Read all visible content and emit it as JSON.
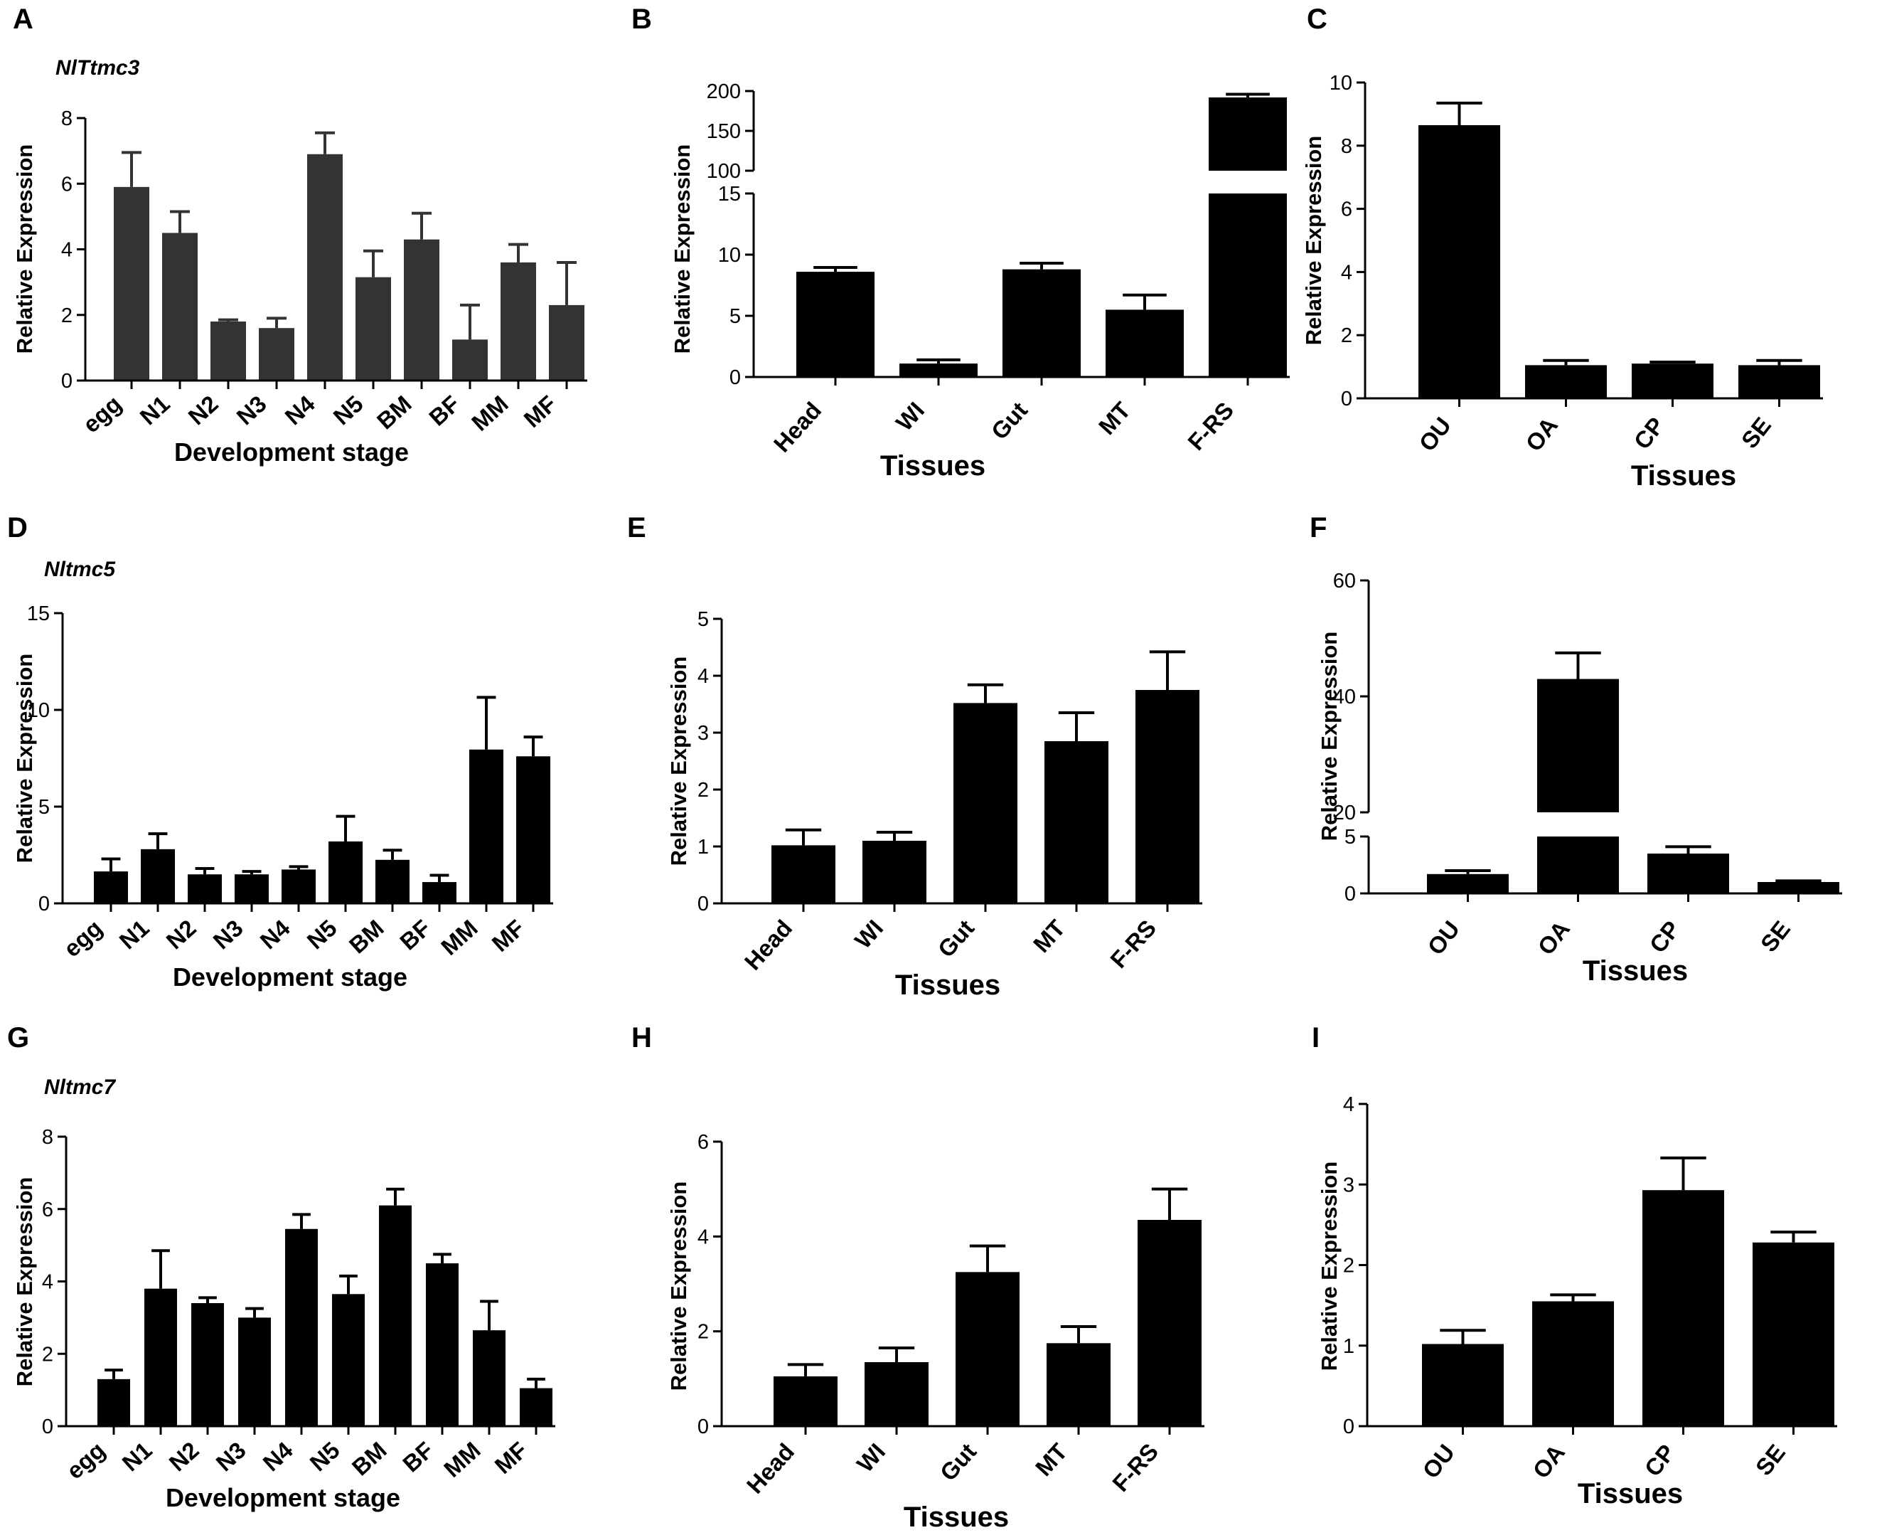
{
  "chart_data": [
    {
      "letter": "A",
      "type": "bar",
      "gene": "NlTtmc3",
      "categories": [
        "egg",
        "N1",
        "N2",
        "N3",
        "N4",
        "N5",
        "BM",
        "BF",
        "MM",
        "MF"
      ],
      "values": [
        5.9,
        4.5,
        1.8,
        1.6,
        6.9,
        3.15,
        4.3,
        1.25,
        3.6,
        2.3
      ],
      "errors": [
        1.05,
        0.65,
        0.05,
        0.3,
        0.65,
        0.8,
        0.8,
        1.05,
        0.55,
        1.3
      ],
      "yticks": [
        "0",
        "2",
        "4",
        "6",
        "8"
      ],
      "ylim": [
        0,
        8
      ],
      "ylabel": "Relative Expression",
      "xlabel": "Development stage",
      "color": "#333333"
    },
    {
      "letter": "B",
      "type": "bar",
      "gene": "",
      "categories": [
        "Head",
        "WI",
        "Gut",
        "MT",
        "F-RS"
      ],
      "values": [
        8.6,
        1.1,
        8.8,
        5.5,
        192
      ],
      "errors": [
        0.35,
        0.3,
        0.5,
        1.2,
        4
      ],
      "yticks_low": [
        "0",
        "5",
        "10",
        "15"
      ],
      "yticks_high": [
        "100",
        "150",
        "200"
      ],
      "ylim_low": [
        0,
        15
      ],
      "ylim_high": [
        100,
        200
      ],
      "broken_axis": true,
      "ylabel": "Relative Expression",
      "xlabel": "Tissues",
      "color": "#000000"
    },
    {
      "letter": "C",
      "type": "bar",
      "gene": "",
      "categories": [
        "OU",
        "OA",
        "CP",
        "SE"
      ],
      "values": [
        8.65,
        1.05,
        1.1,
        1.05
      ],
      "errors": [
        0.7,
        0.15,
        0.05,
        0.15
      ],
      "yticks": [
        "0",
        "2",
        "4",
        "6",
        "8",
        "10"
      ],
      "ylim": [
        0,
        10
      ],
      "ylabel": "Relative Expression",
      "xlabel": "Tissues",
      "color": "#000000"
    },
    {
      "letter": "D",
      "type": "bar",
      "gene": "Nltmc5",
      "categories": [
        "egg",
        "N1",
        "N2",
        "N3",
        "N4",
        "N5",
        "BM",
        "BF",
        "MM",
        "MF"
      ],
      "values": [
        1.65,
        2.8,
        1.5,
        1.5,
        1.75,
        3.2,
        2.25,
        1.1,
        7.95,
        7.6
      ],
      "errors": [
        0.65,
        0.8,
        0.3,
        0.15,
        0.15,
        1.3,
        0.5,
        0.35,
        2.7,
        1.0
      ],
      "yticks": [
        "0",
        "5",
        "10",
        "15"
      ],
      "ylim": [
        0,
        15
      ],
      "ylabel": "Relative Expression",
      "xlabel": "Development stage",
      "color": "#000000"
    },
    {
      "letter": "E",
      "type": "bar",
      "gene": "",
      "categories": [
        "Head",
        "WI",
        "Gut",
        "MT",
        "F-RS"
      ],
      "values": [
        1.02,
        1.1,
        3.52,
        2.85,
        3.75
      ],
      "errors": [
        0.27,
        0.15,
        0.32,
        0.5,
        0.67
      ],
      "yticks": [
        "0",
        "1",
        "2",
        "3",
        "4",
        "5"
      ],
      "ylim": [
        0,
        5
      ],
      "ylabel": "Relative Expression",
      "xlabel": "Tissues",
      "color": "#000000"
    },
    {
      "letter": "F",
      "type": "bar",
      "gene": "",
      "categories": [
        "OU",
        "OA",
        "CP",
        "SE"
      ],
      "values": [
        1.7,
        43,
        3.5,
        1.0
      ],
      "errors": [
        0.3,
        4.5,
        0.6,
        0.1
      ],
      "yticks_low": [
        "0",
        "5"
      ],
      "yticks_high": [
        "20",
        "40",
        "60"
      ],
      "ylim_low": [
        0,
        5
      ],
      "ylim_high": [
        20,
        60
      ],
      "broken_axis": true,
      "ylabel": "Relative Expression",
      "xlabel": "Tissues",
      "color": "#000000"
    },
    {
      "letter": "G",
      "type": "bar",
      "gene": "Nltmc7",
      "categories": [
        "egg",
        "N1",
        "N2",
        "N3",
        "N4",
        "N5",
        "BM",
        "BF",
        "MM",
        "MF"
      ],
      "values": [
        1.3,
        3.8,
        3.4,
        3.0,
        5.45,
        3.65,
        6.1,
        4.5,
        2.65,
        1.05
      ],
      "errors": [
        0.25,
        1.05,
        0.15,
        0.25,
        0.4,
        0.5,
        0.45,
        0.25,
        0.8,
        0.25
      ],
      "yticks": [
        "0",
        "2",
        "4",
        "6",
        "8"
      ],
      "ylim": [
        0,
        8
      ],
      "ylabel": "Relative Expression",
      "xlabel": "Development stage",
      "color": "#000000"
    },
    {
      "letter": "H",
      "type": "bar",
      "gene": "",
      "categories": [
        "Head",
        "WI",
        "Gut",
        "MT",
        "F-RS"
      ],
      "values": [
        1.05,
        1.35,
        3.25,
        1.75,
        4.35
      ],
      "errors": [
        0.25,
        0.3,
        0.55,
        0.35,
        0.65
      ],
      "yticks": [
        "0",
        "2",
        "4",
        "6"
      ],
      "ylim": [
        0,
        6
      ],
      "ylabel": "Relative Expression",
      "xlabel": "Tissues",
      "color": "#000000"
    },
    {
      "letter": "I",
      "type": "bar",
      "gene": "",
      "categories": [
        "OU",
        "OA",
        "CP",
        "SE"
      ],
      "values": [
        1.02,
        1.55,
        2.93,
        2.28
      ],
      "errors": [
        0.17,
        0.08,
        0.4,
        0.13
      ],
      "yticks": [
        "0",
        "1",
        "2",
        "3",
        "4"
      ],
      "ylim": [
        0,
        4
      ],
      "ylabel": "Relative Expression",
      "xlabel": "Tissues",
      "color": "#000000"
    }
  ]
}
